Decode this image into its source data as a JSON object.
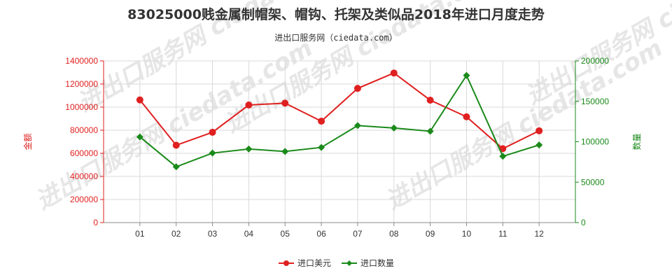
{
  "chart_data": {
    "type": "line",
    "title": "83025000贱金属制帽架、帽钩、托架及类似品2018年进口月度走势",
    "subtitle": "进出口服务网（ciedata.com）",
    "watermark": "进出口服务网 ciedata.com",
    "categories": [
      "01",
      "02",
      "03",
      "04",
      "05",
      "06",
      "07",
      "08",
      "09",
      "10",
      "11",
      "12"
    ],
    "y_left": {
      "label": "金额",
      "ylim": [
        0,
        1400000
      ],
      "ticks": [
        0,
        200000,
        400000,
        600000,
        800000,
        1000000,
        1200000,
        1400000
      ],
      "color": "#e02020"
    },
    "y_right": {
      "label": "数量",
      "ylim": [
        0,
        200000
      ],
      "ticks": [
        0,
        50000,
        100000,
        150000,
        200000
      ],
      "color": "#1a8a1a"
    },
    "series": [
      {
        "name": "进口美元",
        "axis": "left",
        "color": "#e02020",
        "values": [
          1062000,
          670000,
          782000,
          1018000,
          1034000,
          878000,
          1162000,
          1295000,
          1060000,
          916000,
          640000,
          795000
        ]
      },
      {
        "name": "进口数量",
        "axis": "right",
        "color": "#1a8a1a",
        "values": [
          106000,
          69000,
          86000,
          91000,
          88000,
          93000,
          120000,
          117000,
          113000,
          182000,
          82000,
          96000
        ]
      }
    ],
    "grid": true,
    "legend": "bottom-center"
  }
}
